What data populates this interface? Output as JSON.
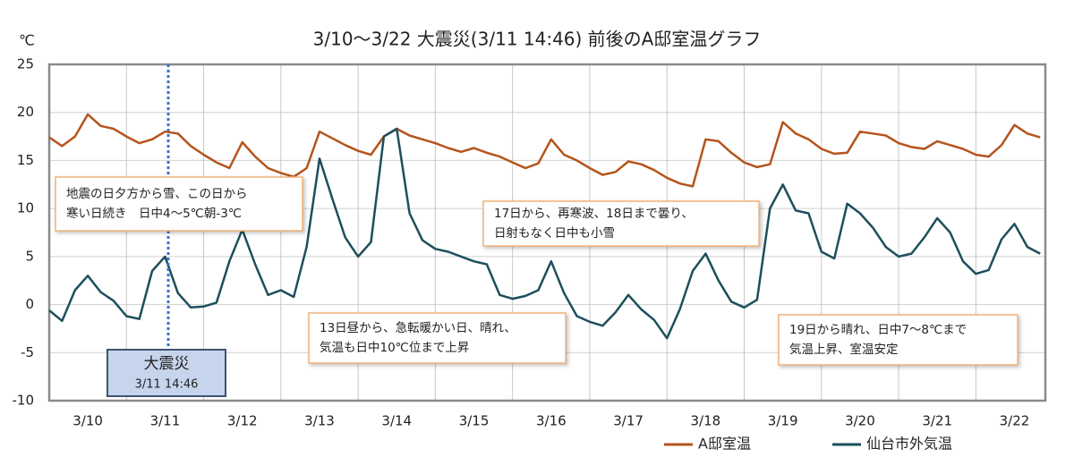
{
  "chart_data": {
    "type": "line",
    "title": "3/10～3/22 大震災(3/11 14:46) 前後のA邸室温グラフ",
    "y_unit": "℃",
    "categories": [
      null,
      null,
      null,
      "3/10",
      null,
      null,
      null,
      null,
      null,
      "3/11",
      null,
      null,
      null,
      null,
      null,
      "3/12",
      null,
      null,
      null,
      null,
      null,
      "3/13",
      null,
      null,
      null,
      null,
      null,
      "3/14",
      null,
      null,
      null,
      null,
      null,
      "3/15",
      null,
      null,
      null,
      null,
      null,
      "3/16",
      null,
      null,
      null,
      null,
      null,
      "3/17",
      null,
      null,
      null,
      null,
      null,
      "3/18",
      null,
      null,
      null,
      null,
      null,
      "3/19",
      null,
      null,
      null,
      null,
      null,
      "3/20",
      null,
      null,
      null,
      null,
      null,
      "3/21",
      null,
      null,
      null,
      null,
      null,
      "3/22",
      null,
      null
    ],
    "series": [
      {
        "name": "A邸室温",
        "color": "#b5541c",
        "values": [
          17.4,
          16.5,
          17.5,
          19.8,
          18.6,
          18.3,
          17.5,
          16.8,
          17.2,
          18.0,
          17.8,
          16.5,
          15.6,
          14.8,
          14.2,
          16.9,
          15.4,
          14.2,
          13.7,
          13.3,
          14.2,
          18.0,
          17.3,
          16.6,
          16.0,
          15.6,
          17.5,
          18.3,
          17.6,
          17.2,
          16.8,
          16.3,
          15.9,
          16.3,
          15.8,
          15.4,
          14.8,
          14.2,
          14.7,
          17.2,
          15.6,
          15.0,
          14.2,
          13.5,
          13.8,
          14.9,
          14.6,
          14.0,
          13.2,
          12.6,
          12.3,
          17.2,
          17.0,
          15.8,
          14.8,
          14.3,
          14.6,
          19.0,
          17.8,
          17.2,
          16.2,
          15.7,
          15.8,
          18.0,
          17.8,
          17.6,
          16.8,
          16.4,
          16.2,
          17.0,
          16.6,
          16.2,
          15.6,
          15.4,
          16.6,
          18.7,
          17.8,
          17.4
        ]
      },
      {
        "name": "仙台市外気温",
        "color": "#1d4f5c",
        "values": [
          -0.6,
          -1.7,
          1.5,
          3.0,
          1.3,
          0.4,
          -1.2,
          -1.5,
          3.5,
          5.0,
          1.2,
          -0.3,
          -0.2,
          0.2,
          4.5,
          7.8,
          4.2,
          1.0,
          1.5,
          0.8,
          6.0,
          15.2,
          11.0,
          7.0,
          5.0,
          6.5,
          17.5,
          18.3,
          9.5,
          6.7,
          5.8,
          5.5,
          5.0,
          4.5,
          4.2,
          1.0,
          0.6,
          0.9,
          1.5,
          4.5,
          1.2,
          -1.2,
          -1.8,
          -2.2,
          -0.8,
          1.0,
          -0.5,
          -1.6,
          -3.5,
          -0.5,
          3.5,
          5.3,
          2.5,
          0.3,
          -0.3,
          0.5,
          10.0,
          12.5,
          9.8,
          9.5,
          5.5,
          4.8,
          10.5,
          9.5,
          8.0,
          6.0,
          5.0,
          5.3,
          7.0,
          9.0,
          7.5,
          4.5,
          3.2,
          3.6,
          6.8,
          8.4,
          6.0,
          5.3
        ]
      }
    ],
    "ylim": [
      -10,
      25
    ],
    "yticks": [
      -10,
      -5,
      0,
      5,
      10,
      15,
      20,
      25
    ],
    "grid": true,
    "event": {
      "label": "大震災",
      "time": "3/11 14:46"
    },
    "annotations": [
      [
        "地震の日夕方から雪、この日から",
        "寒い日続き　日中4～5℃朝-3℃"
      ],
      [
        "13日昼から、急転暖かい日、晴れ、",
        "気温も日中10℃位まで上昇"
      ],
      [
        "17日から、再寒波、18日まで曇り、",
        "日射もなく日中も小雪"
      ],
      [
        "19日から晴れ、日中7～8℃まで",
        "気温上昇、室温安定"
      ]
    ]
  }
}
